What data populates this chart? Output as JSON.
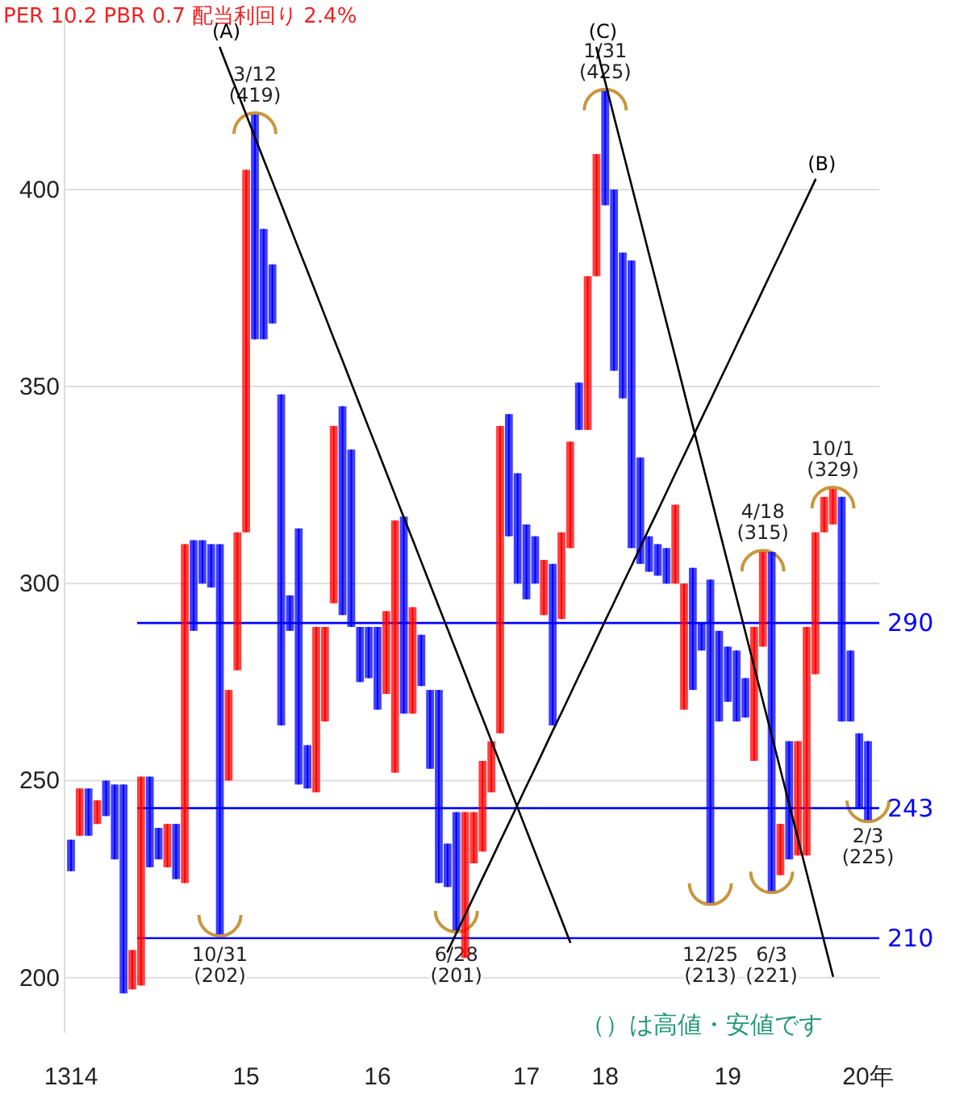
{
  "chart_data": {
    "type": "candlestick",
    "title": "PER 10.2 PBR 0.7 配当利回り 2.4%",
    "ylim": [
      186,
      444
    ],
    "yticks": [
      200,
      250,
      300,
      350,
      400
    ],
    "grid": "y",
    "categories": [
      "1314",
      null,
      null,
      null,
      null,
      null,
      null,
      null,
      null,
      null,
      null,
      null,
      null,
      null,
      null,
      null,
      null,
      null,
      null,
      null,
      "15",
      null,
      null,
      null,
      null,
      null,
      null,
      null,
      null,
      null,
      null,
      null,
      null,
      null,
      null,
      "16",
      null,
      null,
      null,
      null,
      null,
      null,
      null,
      null,
      null,
      null,
      null,
      null,
      null,
      null,
      null,
      null,
      "17",
      null,
      null,
      null,
      null,
      null,
      null,
      null,
      null,
      "18",
      null,
      null,
      null,
      null,
      null,
      null,
      null,
      null,
      null,
      null,
      null,
      null,
      null,
      "19",
      null,
      null,
      null,
      null,
      null,
      null,
      null,
      null,
      null,
      null,
      null,
      null,
      null,
      null,
      null,
      "20年"
    ],
    "colors": [
      "#0000ff",
      "#ff0000",
      "#0000ff",
      "#ff0000",
      "#0000ff",
      "#0000ff",
      "#0000ff",
      "#ff0000",
      "#ff0000",
      "#0000ff",
      "#0000ff",
      "#ff0000",
      "#0000ff",
      "#ff0000",
      "#0000ff",
      "#0000ff",
      "#0000ff",
      "#0000ff",
      "#ff0000",
      "#ff0000",
      "#ff0000",
      "#0000ff",
      "#0000ff",
      "#0000ff",
      "#0000ff",
      "#0000ff",
      "#0000ff",
      "#0000ff",
      "#ff0000",
      "#ff0000",
      "#ff0000",
      "#0000ff",
      "#0000ff",
      "#0000ff",
      "#0000ff",
      "#0000ff",
      "#ff0000",
      "#ff0000",
      "#0000ff",
      "#ff0000",
      "#0000ff",
      "#0000ff",
      "#0000ff",
      "#0000ff",
      "#0000ff",
      "#ff0000",
      "#ff0000",
      "#ff0000",
      "#ff0000",
      "#ff0000",
      "#0000ff",
      "#0000ff",
      "#0000ff",
      "#0000ff",
      "#ff0000",
      "#0000ff",
      "#ff0000",
      "#ff0000",
      "#0000ff",
      "#ff0000",
      "#ff0000",
      "#0000ff",
      "#0000ff",
      "#0000ff",
      "#0000ff",
      "#0000ff",
      "#0000ff",
      "#0000ff",
      "#0000ff",
      "#ff0000",
      "#ff0000",
      "#0000ff",
      "#0000ff",
      "#0000ff",
      "#0000ff",
      "#0000ff",
      "#0000ff",
      "#0000ff",
      "#ff0000",
      "#ff0000",
      "#0000ff",
      "#ff0000",
      "#0000ff",
      "#ff0000",
      "#ff0000",
      "#ff0000",
      "#ff0000",
      "#ff0000",
      "#0000ff",
      "#0000ff",
      "#0000ff",
      "#0000ff"
    ],
    "ohlc": [
      [
        235,
        235,
        227,
        227
      ],
      [
        236,
        248,
        236,
        248
      ],
      [
        248,
        248,
        236,
        236
      ],
      [
        239,
        245,
        239,
        245
      ],
      [
        250,
        250,
        241,
        241
      ],
      [
        249,
        249,
        230,
        230
      ],
      [
        249,
        249,
        196,
        196
      ],
      [
        197,
        207,
        197,
        207
      ],
      [
        198,
        251,
        198,
        251
      ],
      [
        251,
        251,
        228,
        228
      ],
      [
        238,
        238,
        230,
        230
      ],
      [
        228,
        239,
        228,
        239
      ],
      [
        239,
        239,
        225,
        225
      ],
      [
        224,
        310,
        224,
        310
      ],
      [
        311,
        311,
        288,
        288
      ],
      [
        311,
        311,
        300,
        300
      ],
      [
        310,
        310,
        299,
        299
      ],
      [
        310,
        310,
        211,
        211
      ],
      [
        250,
        273,
        250,
        273
      ],
      [
        278,
        313,
        278,
        313
      ],
      [
        313,
        405,
        313,
        405
      ],
      [
        419,
        419,
        362,
        362
      ],
      [
        390,
        390,
        362,
        362
      ],
      [
        381,
        381,
        366,
        366
      ],
      [
        348,
        348,
        264,
        264
      ],
      [
        297,
        297,
        288,
        288
      ],
      [
        314,
        314,
        249,
        249
      ],
      [
        259,
        259,
        248,
        248
      ],
      [
        247,
        289,
        247,
        289
      ],
      [
        265,
        289,
        265,
        289
      ],
      [
        295,
        340,
        295,
        340
      ],
      [
        345,
        345,
        292,
        292
      ],
      [
        334,
        334,
        289,
        289
      ],
      [
        289,
        289,
        275,
        275
      ],
      [
        289,
        289,
        276,
        276
      ],
      [
        289,
        289,
        268,
        268
      ],
      [
        272,
        293,
        272,
        293
      ],
      [
        252,
        316,
        252,
        316
      ],
      [
        317,
        317,
        267,
        267
      ],
      [
        267,
        294,
        267,
        294
      ],
      [
        287,
        287,
        274,
        274
      ],
      [
        273,
        273,
        253,
        253
      ],
      [
        273,
        273,
        224,
        224
      ],
      [
        234,
        234,
        223,
        223
      ],
      [
        242,
        242,
        212,
        212
      ],
      [
        205,
        242,
        205,
        242
      ],
      [
        229,
        242,
        229,
        242
      ],
      [
        232,
        255,
        232,
        255
      ],
      [
        247,
        260,
        247,
        260
      ],
      [
        262,
        340,
        262,
        340
      ],
      [
        343,
        343,
        312,
        312
      ],
      [
        328,
        328,
        300,
        300
      ],
      [
        315,
        315,
        296,
        296
      ],
      [
        312,
        312,
        300,
        300
      ],
      [
        292,
        306,
        292,
        306
      ],
      [
        305,
        305,
        264,
        264
      ],
      [
        291,
        313,
        291,
        313
      ],
      [
        309,
        336,
        309,
        336
      ],
      [
        351,
        351,
        339,
        339
      ],
      [
        339,
        378,
        339,
        378
      ],
      [
        378,
        409,
        378,
        409
      ],
      [
        425,
        425,
        396,
        396
      ],
      [
        400,
        400,
        354,
        354
      ],
      [
        384,
        384,
        347,
        347
      ],
      [
        382,
        382,
        309,
        309
      ],
      [
        332,
        332,
        305,
        305
      ],
      [
        312,
        312,
        303,
        303
      ],
      [
        310,
        310,
        302,
        302
      ],
      [
        309,
        309,
        300,
        300
      ],
      [
        300,
        320,
        300,
        320
      ],
      [
        268,
        300,
        268,
        300
      ],
      [
        304,
        304,
        273,
        273
      ],
      [
        290,
        290,
        283,
        283
      ],
      [
        301,
        301,
        219,
        219
      ],
      [
        288,
        288,
        265,
        265
      ],
      [
        284,
        284,
        270,
        270
      ],
      [
        283,
        283,
        265,
        265
      ],
      [
        276,
        276,
        266,
        266
      ],
      [
        255,
        289,
        255,
        289
      ],
      [
        284,
        308,
        284,
        308
      ],
      [
        308,
        308,
        222,
        222
      ],
      [
        226,
        239,
        226,
        239
      ],
      [
        260,
        260,
        230,
        230
      ],
      [
        231,
        260,
        231,
        260
      ],
      [
        231,
        289,
        231,
        289
      ],
      [
        277,
        313,
        277,
        313
      ],
      [
        313,
        322,
        313,
        322
      ],
      [
        315,
        324,
        315,
        324
      ],
      [
        322,
        322,
        265,
        265
      ],
      [
        283,
        283,
        265,
        265
      ],
      [
        262,
        262,
        243,
        243
      ],
      [
        260,
        260,
        240,
        240
      ]
    ],
    "series": [
      {
        "type": "line",
        "name": "(A)",
        "color": "#000000",
        "values": [
          null,
          null,
          null,
          null,
          null,
          null,
          null,
          null,
          null,
          null,
          null,
          null,
          null,
          null,
          null,
          null,
          null,
          436,
          430.3,
          424.7,
          419,
          413.3,
          407.6,
          402,
          396.3,
          390.6,
          384.9,
          379.3,
          373.6,
          367.9,
          362.2,
          356.6,
          350.9,
          345.2,
          339.5,
          333.9,
          328.2,
          322.5,
          316.8,
          311.2,
          305.5,
          299.8,
          294.1,
          288.5,
          282.8,
          277.1,
          271.4,
          265.8,
          260.1,
          254.4,
          248.7,
          243.1,
          237.4,
          231.7,
          226,
          220.4,
          214.7,
          209,
          null,
          null,
          null,
          null,
          null,
          null,
          null,
          null,
          null,
          null,
          null,
          null,
          null,
          null,
          null,
          null,
          null,
          null,
          null,
          null,
          null,
          null,
          null,
          null,
          null,
          null,
          null,
          null,
          null,
          null,
          null,
          null,
          null,
          null
        ]
      },
      {
        "type": "line",
        "name": "(B)",
        "color": "#000000",
        "values": [
          null,
          null,
          null,
          null,
          null,
          null,
          null,
          null,
          null,
          null,
          null,
          null,
          null,
          null,
          null,
          null,
          null,
          null,
          null,
          null,
          null,
          null,
          null,
          null,
          null,
          null,
          null,
          null,
          null,
          null,
          null,
          null,
          null,
          null,
          null,
          null,
          null,
          null,
          null,
          null,
          null,
          null,
          null,
          206.6,
          211.3,
          215.9,
          220.6,
          225.3,
          229.9,
          234.6,
          239.2,
          243.9,
          248.6,
          253.2,
          257.9,
          262.6,
          267.2,
          271.9,
          276.6,
          281.2,
          285.9,
          290.6,
          295.2,
          299.9,
          304.5,
          309.2,
          313.9,
          318.5,
          323.2,
          327.9,
          332.5,
          337.2,
          341.9,
          346.5,
          351.2,
          355.8,
          360.5,
          365.2,
          369.8,
          374.5,
          379.2,
          383.8,
          388.5,
          393.2,
          397.8,
          402.5,
          null,
          null,
          null,
          null,
          null,
          null
        ]
      },
      {
        "type": "line",
        "name": "(C)",
        "color": "#000000",
        "values": [
          null,
          null,
          null,
          null,
          null,
          null,
          null,
          null,
          null,
          null,
          null,
          null,
          null,
          null,
          null,
          null,
          null,
          null,
          null,
          null,
          null,
          null,
          null,
          null,
          null,
          null,
          null,
          null,
          null,
          null,
          null,
          null,
          null,
          null,
          null,
          null,
          null,
          null,
          null,
          null,
          null,
          null,
          null,
          null,
          null,
          null,
          null,
          null,
          null,
          null,
          null,
          null,
          null,
          null,
          null,
          null,
          null,
          null,
          null,
          null,
          436,
          427.3,
          418.5,
          409.8,
          401.1,
          392.4,
          383.6,
          374.9,
          366.2,
          357.5,
          348.7,
          340,
          331.3,
          322.6,
          313.8,
          305.1,
          296.4,
          287.7,
          278.9,
          270.2,
          261.5,
          252.8,
          244,
          235.3,
          226.6,
          217.9,
          209.1,
          200.4,
          null,
          null,
          null,
          null
        ]
      }
    ],
    "ref_lines": [
      {
        "axis": "y",
        "value": 290,
        "label": "290",
        "color": "#0000ff"
      },
      {
        "axis": "y",
        "value": 243,
        "label": "243",
        "color": "#0000ff"
      },
      {
        "axis": "y",
        "value": 210,
        "label": "210",
        "color": "#0000ff"
      }
    ],
    "annotations": [
      {
        "text": "3/12\n(419)",
        "y": 419
      },
      {
        "text": "10/31\n(202)",
        "y": 211
      },
      {
        "text": "6/28\n(201)",
        "y": 212
      },
      {
        "text": "1/31\n(425)",
        "y": 425
      },
      {
        "text": "12/25\n(213)",
        "y": 219
      },
      {
        "text": "4/18\n(315)",
        "y": 308
      },
      {
        "text": "6/3\n(221)",
        "y": 222
      },
      {
        "text": "10/1\n(329)",
        "y": 324
      },
      {
        "text": "2/3\n(225)",
        "y": 240
      },
      "（）は高値・安値です"
    ]
  }
}
